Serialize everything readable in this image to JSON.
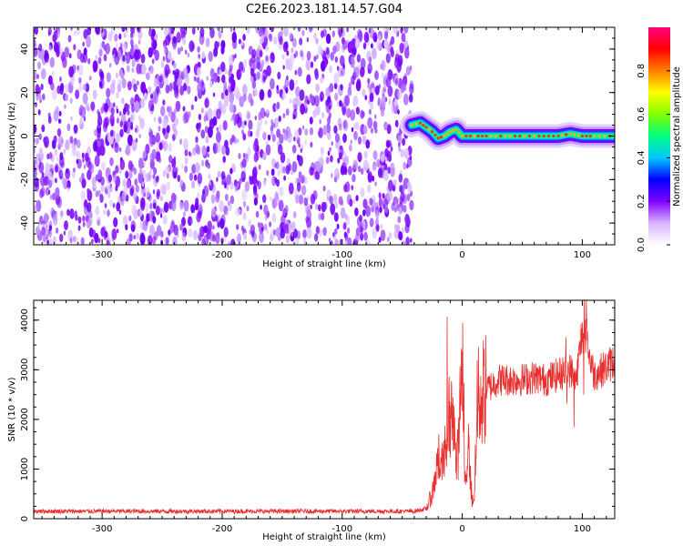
{
  "title": "C2E6.2023.181.14.57.G04",
  "chart_data": [
    {
      "type": "heatmap",
      "xlabel": "Height of straight line (km)",
      "ylabel": "Frequency (Hz)",
      "xlim": [
        -357,
        127
      ],
      "ylim": [
        -50,
        50
      ],
      "xticks": [
        -300,
        -200,
        -100,
        0,
        100
      ],
      "xtick_labels": [
        "-300",
        "-200",
        "-100",
        "0",
        "100"
      ],
      "yticks": [
        -40,
        -20,
        0,
        20,
        40
      ],
      "ytick_labels": [
        "-40",
        "-20",
        "0",
        "20",
        "40"
      ],
      "noise_region_x": [
        -357,
        -42
      ],
      "signal_track": {
        "x": [
          -42,
          -35,
          -30,
          -25,
          -20,
          -15,
          -10,
          -5,
          0,
          10,
          20,
          40,
          60,
          80,
          90,
          100,
          110,
          127
        ],
        "y": [
          5,
          6,
          4,
          2,
          -1,
          0,
          2,
          3,
          0,
          0,
          0,
          0,
          0,
          0,
          1,
          0,
          0,
          0
        ]
      },
      "colorbar": {
        "label": "Normalized spectral amplitude",
        "range": [
          0,
          1
        ],
        "ticks": [
          0.0,
          0.2,
          0.4,
          0.6,
          0.8
        ],
        "tick_labels": [
          "0.0",
          "0.2",
          "0.4",
          "0.6",
          "0.8"
        ],
        "colors": [
          "#ffffff",
          "#d9b3ff",
          "#8000ff",
          "#0000ff",
          "#00c8ff",
          "#00ff80",
          "#80ff00",
          "#ffff00",
          "#ff8000",
          "#ff0000",
          "#ff0080"
        ]
      }
    },
    {
      "type": "line",
      "xlabel": "Height of straight line (km)",
      "ylabel": "SNR (10 * v/v)",
      "xlim": [
        -357,
        127
      ],
      "ylim": [
        0,
        4400
      ],
      "xticks": [
        -300,
        -200,
        -100,
        0,
        100
      ],
      "xtick_labels": [
        "-300",
        "-200",
        "-100",
        "0",
        "100"
      ],
      "yticks": [
        0,
        1000,
        2000,
        3000,
        4000
      ],
      "ytick_labels": [
        "0",
        "1000",
        "2000",
        "3000",
        "4000"
      ],
      "color": "#e8302f",
      "series": [
        {
          "x": [
            -357,
            -300,
            -200,
            -100,
            -40,
            -30,
            -25,
            -20,
            -15,
            -12,
            -10,
            -8,
            -5,
            -3,
            0,
            2,
            5,
            8,
            10,
            12,
            15,
            20,
            30,
            40,
            50,
            60,
            70,
            80,
            90,
            95,
            100,
            110,
            120,
            127
          ],
          "y": [
            150,
            150,
            150,
            150,
            150,
            200,
            500,
            1200,
            1100,
            2300,
            1500,
            2600,
            1000,
            1500,
            3400,
            600,
            1500,
            400,
            300,
            2300,
            2500,
            2600,
            2800,
            2800,
            2800,
            2850,
            2800,
            2900,
            3000,
            2800,
            3800,
            2900,
            3050,
            3200
          ]
        }
      ]
    }
  ]
}
